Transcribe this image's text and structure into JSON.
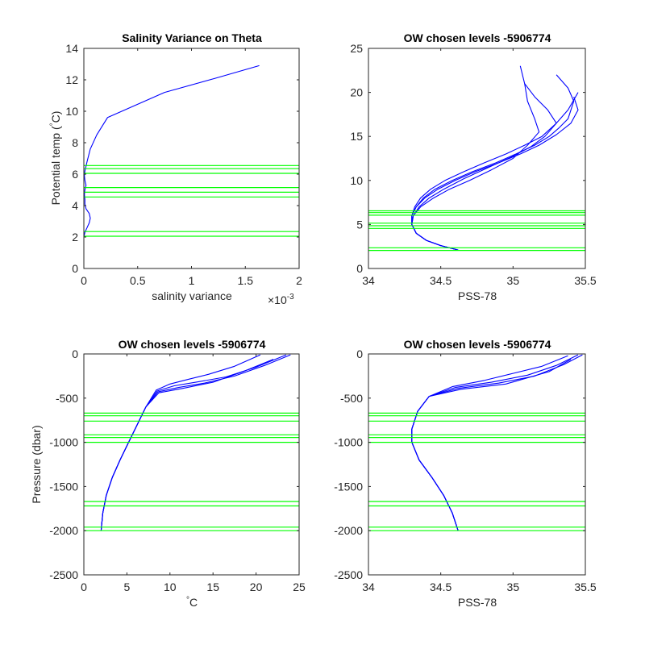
{
  "chart_data": [
    {
      "id": "p1",
      "type": "line",
      "title": "Salinity Variance on Theta",
      "xlabel": "salinity variance",
      "ylabel": "Potential temp (",
      "ylabel_deg": "°",
      "ylabel_unit": "C)",
      "xlim": [
        0,
        0.002
      ],
      "ylim": [
        0,
        14
      ],
      "x_ticks": [
        0,
        0.0005,
        0.001,
        0.0015,
        0.002
      ],
      "x_tick_labels": [
        "0",
        "0.5",
        "1",
        "1.5",
        "2"
      ],
      "x_exponent": "×10",
      "x_exponent_power": "-3",
      "y_ticks": [
        0,
        2,
        4,
        6,
        8,
        10,
        12,
        14
      ],
      "y_tick_labels": [
        "0",
        "2",
        "4",
        "6",
        "8",
        "10",
        "12",
        "14"
      ],
      "grid": false,
      "line_color": "#0000ff",
      "level_color": "#00ff00",
      "levels": [
        2.05,
        2.35,
        4.55,
        4.85,
        5.15,
        6.05,
        6.35,
        6.55
      ],
      "series": [
        {
          "x": [
            0.0,
            1e-05,
            3e-05,
            5e-05,
            6e-05,
            5e-05,
            2e-05,
            1e-05,
            1e-05,
            5e-06,
            1e-05,
            2e-05,
            1e-05,
            5e-06,
            1e-05,
            3e-05,
            6e-05,
            0.00012,
            0.00022,
            0.00075,
            0.00122,
            0.00163
          ],
          "y": [
            2.0,
            2.3,
            2.6,
            2.9,
            3.2,
            3.5,
            3.8,
            4.1,
            4.4,
            4.7,
            5.0,
            5.3,
            5.6,
            5.9,
            6.2,
            6.8,
            7.6,
            8.5,
            9.6,
            11.2,
            12.1,
            12.9
          ]
        }
      ]
    },
    {
      "id": "p2",
      "type": "line",
      "title": "OW chosen levels -5906774",
      "xlabel": "PSS-78",
      "ylabel": "",
      "xlim": [
        34,
        35.5
      ],
      "ylim": [
        0,
        25
      ],
      "x_ticks": [
        34,
        34.5,
        35,
        35.5
      ],
      "x_tick_labels": [
        "34",
        "34.5",
        "35",
        "35.5"
      ],
      "y_ticks": [
        0,
        5,
        10,
        15,
        20,
        25
      ],
      "y_tick_labels": [
        "0",
        "5",
        "10",
        "15",
        "20",
        "25"
      ],
      "grid": false,
      "line_color": "#0000ff",
      "level_color": "#00ff00",
      "levels": [
        2.05,
        2.35,
        4.55,
        4.85,
        5.15,
        6.05,
        6.35,
        6.55
      ],
      "series": [
        {
          "x": [
            34.62,
            34.5,
            34.4,
            34.33,
            34.3,
            34.3,
            34.33,
            34.38,
            34.46,
            34.58,
            34.72,
            34.88,
            35.02,
            35.15,
            35.25,
            35.32,
            35.38,
            35.4,
            35.42,
            35.38,
            35.3
          ],
          "y": [
            2.1,
            2.6,
            3.2,
            4.0,
            5.0,
            6.0,
            7.0,
            8.0,
            9.0,
            10.0,
            11.0,
            12.0,
            13.0,
            14.0,
            15.0,
            16.0,
            17.0,
            18.0,
            19.0,
            20.5,
            22.0
          ]
        },
        {
          "x": [
            34.62,
            34.5,
            34.4,
            34.33,
            34.3,
            34.31,
            34.35,
            34.42,
            34.52,
            34.66,
            34.82,
            34.98,
            35.12,
            35.22,
            35.3,
            35.24,
            35.15,
            35.08,
            35.05
          ],
          "y": [
            2.1,
            2.6,
            3.2,
            4.0,
            5.0,
            6.0,
            7.0,
            8.0,
            9.0,
            10.2,
            11.4,
            12.6,
            13.8,
            15.0,
            16.5,
            18.0,
            19.5,
            21.0,
            23.0
          ]
        },
        {
          "x": [
            34.62,
            34.5,
            34.4,
            34.33,
            34.3,
            34.3,
            34.32,
            34.36,
            34.43,
            34.53,
            34.66,
            34.8,
            34.95,
            35.08,
            35.2,
            35.3,
            35.38,
            35.45
          ],
          "y": [
            2.1,
            2.6,
            3.2,
            4.0,
            5.0,
            6.0,
            7.0,
            8.0,
            9.0,
            10.0,
            11.0,
            12.0,
            13.0,
            14.0,
            15.0,
            16.5,
            18.0,
            20.0
          ]
        },
        {
          "x": [
            34.62,
            34.5,
            34.4,
            34.33,
            34.3,
            34.31,
            34.36,
            34.45,
            34.56,
            34.7,
            34.85,
            35.0,
            35.1,
            35.18,
            35.15,
            35.1,
            35.08
          ],
          "y": [
            2.1,
            2.6,
            3.2,
            4.0,
            5.0,
            6.0,
            7.0,
            8.0,
            9.0,
            10.0,
            11.2,
            12.5,
            14.0,
            15.5,
            17.0,
            19.0,
            21.0
          ]
        },
        {
          "x": [
            34.62,
            34.5,
            34.4,
            34.33,
            34.3,
            34.3,
            34.33,
            34.39,
            34.48,
            34.6,
            34.74,
            34.9,
            35.05,
            35.18,
            35.3,
            35.4,
            35.45,
            35.42
          ],
          "y": [
            2.1,
            2.6,
            3.2,
            4.0,
            5.0,
            6.0,
            7.0,
            8.0,
            9.0,
            10.0,
            11.0,
            12.0,
            13.0,
            14.0,
            15.2,
            16.5,
            18.0,
            19.5
          ]
        }
      ]
    },
    {
      "id": "p3",
      "type": "line",
      "title": "OW chosen levels -5906774",
      "xlabel": "C",
      "xlabel_deg": "°",
      "ylabel": "Pressure (dbar)",
      "xlim": [
        0,
        25
      ],
      "ylim": [
        -2500,
        0
      ],
      "x_ticks": [
        0,
        5,
        10,
        15,
        20,
        25
      ],
      "x_tick_labels": [
        "0",
        "5",
        "10",
        "15",
        "20",
        "25"
      ],
      "y_ticks": [
        -2500,
        -2000,
        -1500,
        -1000,
        -500,
        0
      ],
      "y_tick_labels": [
        "-2500",
        "-2000",
        "-1500",
        "-1000",
        "-500",
        "0"
      ],
      "grid": false,
      "line_color": "#0000ff",
      "level_color": "#00ff00",
      "levels": [
        -670,
        -700,
        -760,
        -915,
        -945,
        -1000,
        -1670,
        -1720,
        -1960,
        -2000
      ],
      "series": [
        {
          "x": [
            2.0,
            2.2,
            2.6,
            3.3,
            4.2,
            5.2,
            6.2,
            7.2,
            8.5,
            10.5,
            13.0,
            16.5,
            20.0,
            23.5
          ],
          "y": [
            -2000,
            -1800,
            -1600,
            -1400,
            -1200,
            -1000,
            -800,
            -600,
            -420,
            -360,
            -320,
            -260,
            -150,
            -10
          ]
        },
        {
          "x": [
            2.0,
            2.2,
            2.6,
            3.3,
            4.2,
            5.2,
            6.2,
            7.2,
            8.6,
            11.0,
            14.0,
            17.5,
            21.0,
            24.0
          ],
          "y": [
            -2000,
            -1800,
            -1600,
            -1400,
            -1200,
            -1000,
            -800,
            -600,
            -430,
            -380,
            -330,
            -250,
            -130,
            -10
          ]
        },
        {
          "x": [
            2.0,
            2.2,
            2.6,
            3.3,
            4.2,
            5.2,
            6.2,
            7.2,
            8.4,
            10.0,
            12.0,
            14.5,
            17.5,
            20.5
          ],
          "y": [
            -2000,
            -1800,
            -1600,
            -1400,
            -1200,
            -1000,
            -800,
            -600,
            -410,
            -340,
            -290,
            -230,
            -140,
            -10
          ]
        },
        {
          "x": [
            2.0,
            2.2,
            2.6,
            3.3,
            4.2,
            5.2,
            6.2,
            7.2,
            8.7,
            11.5,
            15.0,
            18.5,
            22.0
          ],
          "y": [
            -2000,
            -1800,
            -1600,
            -1400,
            -1200,
            -1000,
            -800,
            -600,
            -440,
            -390,
            -320,
            -200,
            -60
          ]
        }
      ]
    },
    {
      "id": "p4",
      "type": "line",
      "title": "OW chosen levels -5906774",
      "xlabel": "PSS-78",
      "ylabel": "",
      "xlim": [
        34,
        35.5
      ],
      "ylim": [
        -2500,
        0
      ],
      "x_ticks": [
        34,
        34.5,
        35,
        35.5
      ],
      "x_tick_labels": [
        "34",
        "34.5",
        "35",
        "35.5"
      ],
      "y_ticks": [
        -2500,
        -2000,
        -1500,
        -1000,
        -500,
        0
      ],
      "y_tick_labels": [
        "-2500",
        "-2000",
        "-1500",
        "-1000",
        "-500",
        "0"
      ],
      "grid": false,
      "line_color": "#0000ff",
      "level_color": "#00ff00",
      "levels": [
        -670,
        -700,
        -760,
        -915,
        -945,
        -1000,
        -1670,
        -1720,
        -1960,
        -2000
      ],
      "series": [
        {
          "x": [
            34.62,
            34.58,
            34.52,
            34.44,
            34.35,
            34.3,
            34.3,
            34.34,
            34.42,
            34.6,
            34.85,
            35.1,
            35.3,
            35.45
          ],
          "y": [
            -2000,
            -1800,
            -1600,
            -1400,
            -1200,
            -1000,
            -850,
            -650,
            -480,
            -380,
            -320,
            -240,
            -130,
            -10
          ]
        },
        {
          "x": [
            34.62,
            34.58,
            34.52,
            34.44,
            34.35,
            34.3,
            34.3,
            34.34,
            34.42,
            34.62,
            34.9,
            35.15,
            35.35,
            35.48
          ],
          "y": [
            -2000,
            -1800,
            -1600,
            -1400,
            -1200,
            -1000,
            -850,
            -650,
            -480,
            -390,
            -330,
            -250,
            -120,
            -10
          ]
        },
        {
          "x": [
            34.62,
            34.58,
            34.52,
            34.44,
            34.35,
            34.3,
            34.3,
            34.34,
            34.42,
            34.58,
            34.8,
            35.0,
            35.2,
            35.38
          ],
          "y": [
            -2000,
            -1800,
            -1600,
            -1400,
            -1200,
            -1000,
            -850,
            -650,
            -480,
            -370,
            -300,
            -220,
            -140,
            -20
          ]
        },
        {
          "x": [
            34.62,
            34.58,
            34.52,
            34.44,
            34.35,
            34.3,
            34.3,
            34.34,
            34.42,
            34.64,
            34.95,
            35.25,
            35.4
          ],
          "y": [
            -2000,
            -1800,
            -1600,
            -1400,
            -1200,
            -1000,
            -850,
            -650,
            -480,
            -400,
            -340,
            -200,
            -60
          ]
        }
      ]
    }
  ]
}
